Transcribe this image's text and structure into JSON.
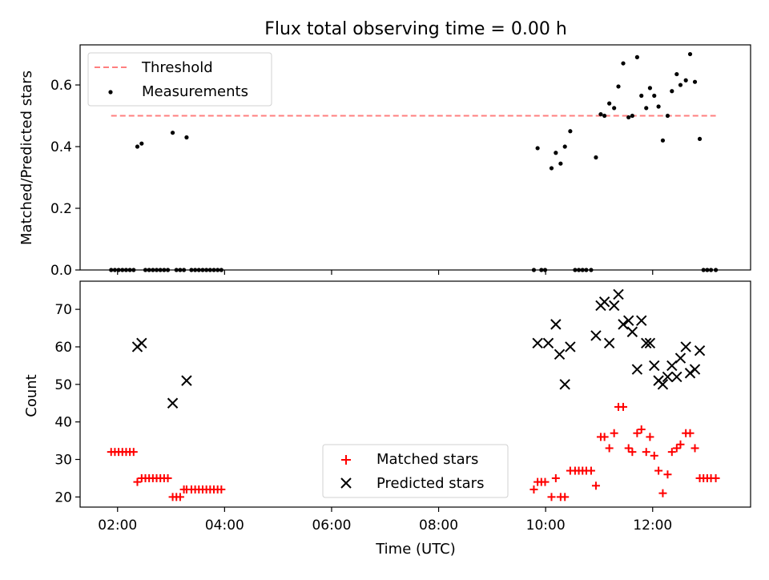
{
  "title": "Flux total observing time = 0.00 h",
  "chart_data": [
    {
      "type": "scatter",
      "ylabel": "Matched/Predicted stars",
      "xlim": [
        1.3,
        13.83
      ],
      "ylim": [
        0.0,
        0.73
      ],
      "yticks": [
        0.0,
        0.2,
        0.4,
        0.6
      ],
      "ytick_labels": [
        "0.0",
        "0.2",
        "0.4",
        "0.6"
      ],
      "xticks": [
        2,
        4,
        6,
        8,
        10,
        12
      ],
      "legend": {
        "placement": "top-left",
        "entries": [
          "Threshold",
          "Measurements"
        ]
      },
      "threshold": {
        "name": "Threshold",
        "value": 0.5,
        "x_range": [
          1.88,
          13.18
        ],
        "color": "#ff7f7f"
      },
      "series": [
        {
          "name": "Measurements",
          "color": "#000000",
          "points": [
            [
              1.88,
              0
            ],
            [
              1.95,
              0
            ],
            [
              2.02,
              0
            ],
            [
              2.09,
              0
            ],
            [
              2.16,
              0
            ],
            [
              2.23,
              0
            ],
            [
              2.3,
              0
            ],
            [
              2.37,
              0.4
            ],
            [
              2.45,
              0.41
            ],
            [
              2.52,
              0
            ],
            [
              2.59,
              0
            ],
            [
              2.66,
              0
            ],
            [
              2.73,
              0
            ],
            [
              2.8,
              0
            ],
            [
              2.87,
              0
            ],
            [
              2.94,
              0
            ],
            [
              3.03,
              0.445
            ],
            [
              3.1,
              0
            ],
            [
              3.17,
              0
            ],
            [
              3.24,
              0
            ],
            [
              3.29,
              0.43
            ],
            [
              3.38,
              0
            ],
            [
              3.45,
              0
            ],
            [
              3.52,
              0
            ],
            [
              3.59,
              0
            ],
            [
              3.66,
              0
            ],
            [
              3.73,
              0
            ],
            [
              3.8,
              0
            ],
            [
              3.87,
              0
            ],
            [
              3.94,
              0
            ],
            [
              9.78,
              0
            ],
            [
              9.85,
              0.395
            ],
            [
              9.92,
              0
            ],
            [
              9.99,
              0
            ],
            [
              10.11,
              0.33
            ],
            [
              10.19,
              0.38
            ],
            [
              10.28,
              0.345
            ],
            [
              10.36,
              0.4
            ],
            [
              10.46,
              0.45
            ],
            [
              10.55,
              0
            ],
            [
              10.62,
              0
            ],
            [
              10.69,
              0
            ],
            [
              10.76,
              0
            ],
            [
              10.85,
              0
            ],
            [
              10.94,
              0.365
            ],
            [
              11.03,
              0.505
            ],
            [
              11.1,
              0.5
            ],
            [
              11.19,
              0.54
            ],
            [
              11.28,
              0.525
            ],
            [
              11.36,
              0.595
            ],
            [
              11.45,
              0.67
            ],
            [
              11.55,
              0.495
            ],
            [
              11.62,
              0.5
            ],
            [
              11.71,
              0.69
            ],
            [
              11.79,
              0.565
            ],
            [
              11.88,
              0.525
            ],
            [
              11.95,
              0.59
            ],
            [
              12.03,
              0.565
            ],
            [
              12.11,
              0.53
            ],
            [
              12.19,
              0.42
            ],
            [
              12.28,
              0.5
            ],
            [
              12.36,
              0.58
            ],
            [
              12.45,
              0.635
            ],
            [
              12.52,
              0.6
            ],
            [
              12.62,
              0.615
            ],
            [
              12.7,
              0.7
            ],
            [
              12.79,
              0.61
            ],
            [
              12.88,
              0.425
            ],
            [
              12.95,
              0
            ],
            [
              13.02,
              0
            ],
            [
              13.09,
              0
            ],
            [
              13.18,
              0
            ]
          ]
        }
      ]
    },
    {
      "type": "scatter",
      "xlabel": "Time (UTC)",
      "ylabel": "Count",
      "xlim": [
        1.3,
        13.83
      ],
      "ylim": [
        17.3,
        77.5
      ],
      "yticks": [
        20,
        30,
        40,
        50,
        60,
        70
      ],
      "ytick_labels": [
        "20",
        "30",
        "40",
        "50",
        "60",
        "70"
      ],
      "xticks": [
        2,
        4,
        6,
        8,
        10,
        12
      ],
      "xtick_labels": [
        "02:00",
        "04:00",
        "06:00",
        "08:00",
        "10:00",
        "12:00"
      ],
      "legend": {
        "placement": "lower-center",
        "entries": [
          "Matched stars",
          "Predicted stars"
        ]
      },
      "series": [
        {
          "name": "Matched stars",
          "marker": "plus",
          "color": "#ff0000",
          "points": [
            [
              1.88,
              32
            ],
            [
              1.95,
              32
            ],
            [
              2.02,
              32
            ],
            [
              2.09,
              32
            ],
            [
              2.16,
              32
            ],
            [
              2.23,
              32
            ],
            [
              2.3,
              32
            ],
            [
              2.37,
              24
            ],
            [
              2.45,
              25
            ],
            [
              2.52,
              25
            ],
            [
              2.59,
              25
            ],
            [
              2.66,
              25
            ],
            [
              2.73,
              25
            ],
            [
              2.8,
              25
            ],
            [
              2.87,
              25
            ],
            [
              2.94,
              25
            ],
            [
              3.03,
              20
            ],
            [
              3.1,
              20
            ],
            [
              3.17,
              20
            ],
            [
              3.24,
              22
            ],
            [
              3.29,
              22
            ],
            [
              3.38,
              22
            ],
            [
              3.45,
              22
            ],
            [
              3.52,
              22
            ],
            [
              3.59,
              22
            ],
            [
              3.66,
              22
            ],
            [
              3.73,
              22
            ],
            [
              3.8,
              22
            ],
            [
              3.87,
              22
            ],
            [
              3.94,
              22
            ],
            [
              9.78,
              22
            ],
            [
              9.85,
              24
            ],
            [
              9.92,
              24
            ],
            [
              9.99,
              24
            ],
            [
              10.11,
              20
            ],
            [
              10.19,
              25
            ],
            [
              10.28,
              20
            ],
            [
              10.36,
              20
            ],
            [
              10.46,
              27
            ],
            [
              10.55,
              27
            ],
            [
              10.62,
              27
            ],
            [
              10.69,
              27
            ],
            [
              10.76,
              27
            ],
            [
              10.85,
              27
            ],
            [
              10.94,
              23
            ],
            [
              11.03,
              36
            ],
            [
              11.1,
              36
            ],
            [
              11.19,
              33
            ],
            [
              11.28,
              37
            ],
            [
              11.36,
              44
            ],
            [
              11.45,
              44
            ],
            [
              11.55,
              33
            ],
            [
              11.62,
              32
            ],
            [
              11.71,
              37
            ],
            [
              11.79,
              38
            ],
            [
              11.88,
              32
            ],
            [
              11.95,
              36
            ],
            [
              12.03,
              31
            ],
            [
              12.11,
              27
            ],
            [
              12.19,
              21
            ],
            [
              12.28,
              26
            ],
            [
              12.36,
              32
            ],
            [
              12.45,
              33
            ],
            [
              12.52,
              34
            ],
            [
              12.62,
              37
            ],
            [
              12.7,
              37
            ],
            [
              12.79,
              33
            ],
            [
              12.88,
              25
            ],
            [
              12.95,
              25
            ],
            [
              13.02,
              25
            ],
            [
              13.09,
              25
            ],
            [
              13.18,
              25
            ]
          ]
        },
        {
          "name": "Predicted stars",
          "marker": "x",
          "color": "#000000",
          "points": [
            [
              2.37,
              60
            ],
            [
              2.45,
              61
            ],
            [
              3.03,
              45
            ],
            [
              3.29,
              51
            ],
            [
              9.85,
              61
            ],
            [
              10.05,
              61
            ],
            [
              10.19,
              66
            ],
            [
              10.26,
              58
            ],
            [
              10.36,
              50
            ],
            [
              10.46,
              60
            ],
            [
              10.94,
              63
            ],
            [
              11.03,
              71
            ],
            [
              11.1,
              72
            ],
            [
              11.19,
              61
            ],
            [
              11.28,
              71
            ],
            [
              11.36,
              74
            ],
            [
              11.45,
              66
            ],
            [
              11.55,
              67
            ],
            [
              11.62,
              64
            ],
            [
              11.71,
              54
            ],
            [
              11.79,
              67
            ],
            [
              11.88,
              61
            ],
            [
              11.95,
              61
            ],
            [
              12.03,
              55
            ],
            [
              12.11,
              51
            ],
            [
              12.19,
              50
            ],
            [
              12.28,
              52
            ],
            [
              12.36,
              55
            ],
            [
              12.45,
              52
            ],
            [
              12.52,
              57
            ],
            [
              12.62,
              60
            ],
            [
              12.7,
              53
            ],
            [
              12.79,
              54
            ],
            [
              12.88,
              59
            ]
          ]
        }
      ]
    }
  ]
}
